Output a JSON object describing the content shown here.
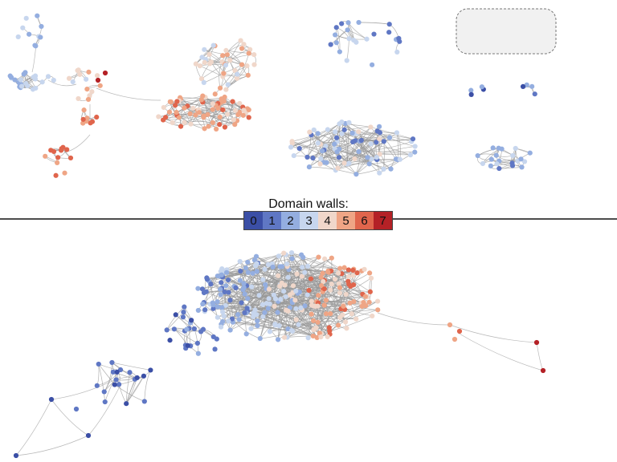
{
  "legend": {
    "title": "Domain walls:",
    "items": [
      {
        "label": "0",
        "color": "#3b4fa6"
      },
      {
        "label": "1",
        "color": "#5f77c4"
      },
      {
        "label": "2",
        "color": "#94aee0"
      },
      {
        "label": "3",
        "color": "#c7d6ee"
      },
      {
        "label": "4",
        "color": "#f0d7ca"
      },
      {
        "label": "5",
        "color": "#efa585"
      },
      {
        "label": "6",
        "color": "#e0654c"
      },
      {
        "label": "7",
        "color": "#b42126"
      }
    ]
  },
  "colors": {
    "edge": "#9a9a9a",
    "divider": "#111111",
    "box_fill": "#f1f1f1",
    "box_stroke": "#777777"
  }
}
